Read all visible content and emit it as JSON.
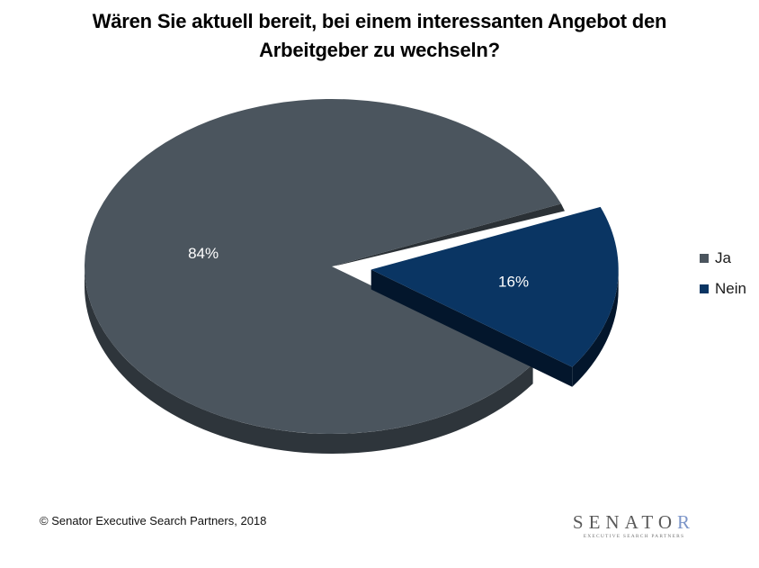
{
  "title_lines": [
    "Wären Sie aktuell bereit, bei einem interessanten Angebot den",
    "Arbeitgeber zu wechseln?"
  ],
  "chart_data": {
    "type": "pie",
    "slices": [
      {
        "label": "Ja",
        "value": 84,
        "data_label": "84%",
        "color": "#4b555e",
        "side_color": "#2e353b"
      },
      {
        "label": "Nein",
        "value": 16,
        "data_label": "16%",
        "color": "#0a3563",
        "side_color": "#03162c",
        "exploded": true
      }
    ],
    "legend_position": "right",
    "style": "3d"
  },
  "footer": {
    "copyright": "© Senator Executive Search Partners, 2018"
  },
  "logo": {
    "name_main": "SENATO",
    "name_last": "R",
    "tagline": "EXECUTIVE SEARCH PARTNERS",
    "accent_color": "#7c95c8"
  }
}
